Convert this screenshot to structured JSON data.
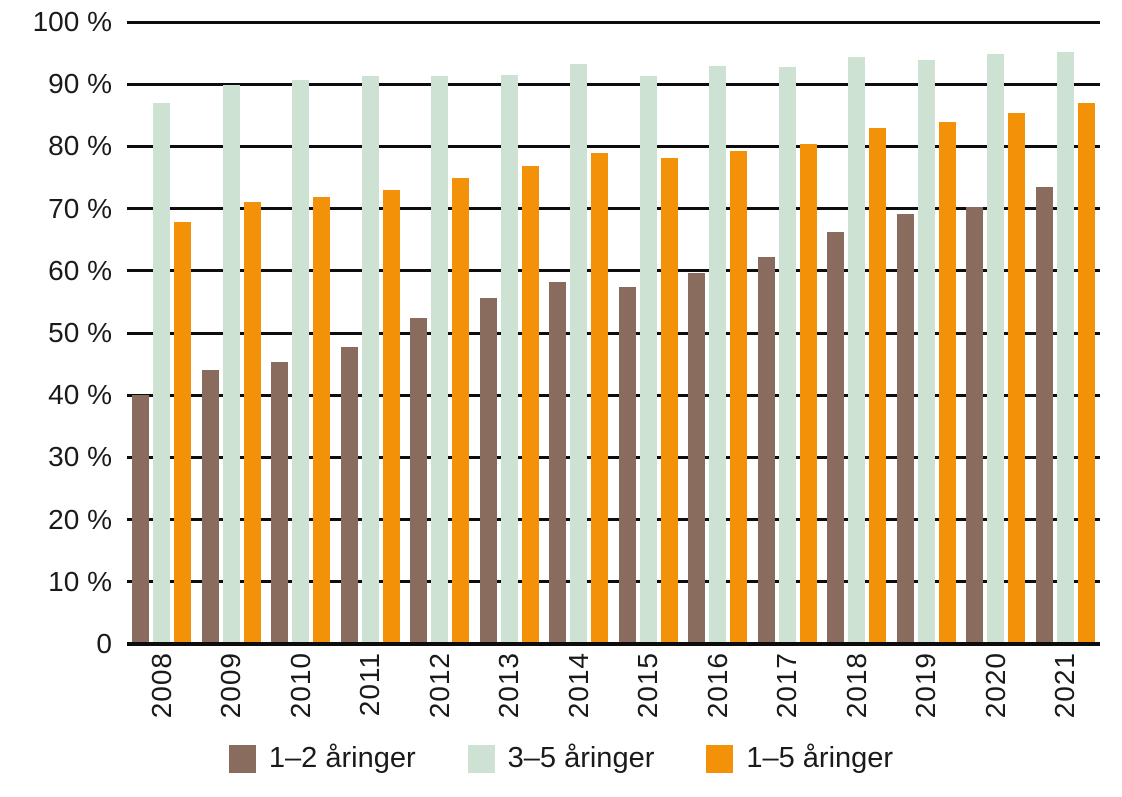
{
  "chart_data": {
    "type": "bar",
    "title": "",
    "categories": [
      "2008",
      "2009",
      "2010",
      "2011",
      "2012",
      "2013",
      "2014",
      "2015",
      "2016",
      "2017",
      "2018",
      "2019",
      "2020",
      "2021"
    ],
    "series": [
      {
        "name": "1–2 åringer",
        "color": "#8a6c5e",
        "values": [
          40.0,
          44.1,
          45.4,
          47.8,
          52.4,
          55.7,
          58.2,
          57.4,
          59.7,
          62.2,
          66.3,
          69.1,
          70.2,
          73.5
        ]
      },
      {
        "name": "3–5 åringer",
        "color": "#cee2d4",
        "values": [
          87.0,
          89.8,
          90.6,
          91.4,
          91.3,
          91.5,
          93.2,
          91.3,
          92.9,
          92.8,
          94.3,
          93.9,
          94.8,
          95.2
        ]
      },
      {
        "name": "1–5 åringer",
        "color": "#f39208",
        "values": [
          67.8,
          71.0,
          71.9,
          73.0,
          75.0,
          76.8,
          78.9,
          78.2,
          79.3,
          80.4,
          82.9,
          84.0,
          85.4,
          87.0
        ]
      }
    ],
    "xlabel": "",
    "ylabel": "",
    "ylim": [
      0,
      100
    ],
    "yticks": [
      {
        "value": 100,
        "label": "100 %"
      },
      {
        "value": 90,
        "label": "90 %"
      },
      {
        "value": 80,
        "label": "80 %"
      },
      {
        "value": 70,
        "label": "70 %"
      },
      {
        "value": 60,
        "label": "60 %"
      },
      {
        "value": 50,
        "label": "50 %"
      },
      {
        "value": 40,
        "label": "40 %"
      },
      {
        "value": 30,
        "label": "30 %"
      },
      {
        "value": 20,
        "label": "20 %"
      },
      {
        "value": 10,
        "label": "10 %"
      },
      {
        "value": 0,
        "label": "0"
      }
    ],
    "grid": "horizontal",
    "legend_position": "bottom",
    "colors": {
      "grid_line": "#0d0d0d",
      "axis_line": "#0d0d0d",
      "text": "#1a1a1a",
      "background": "#ffffff"
    }
  }
}
